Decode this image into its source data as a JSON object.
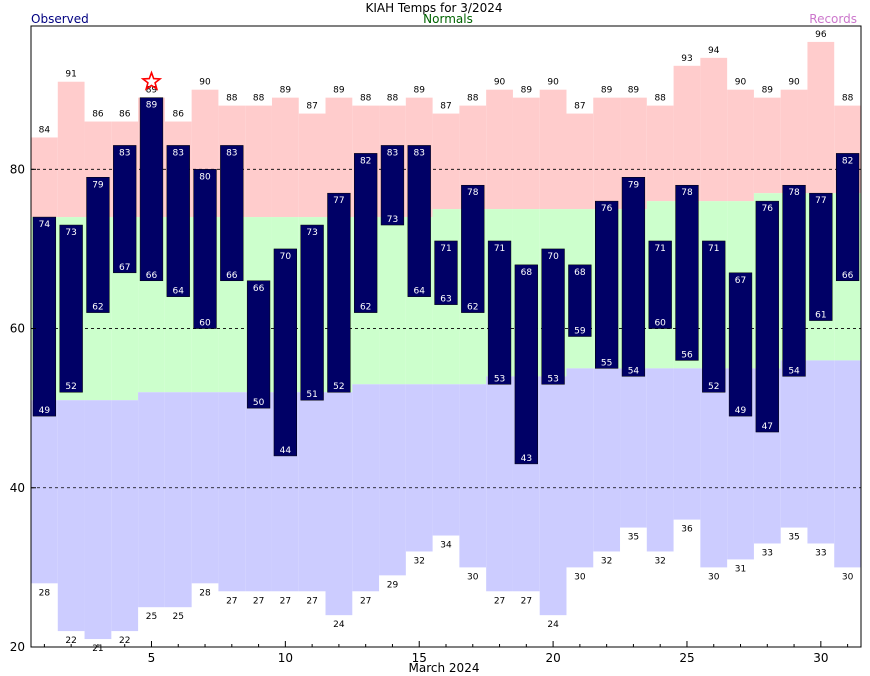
{
  "chart_data": {
    "type": "bar",
    "title": "KIAH Temps for 3/2024",
    "legend": {
      "observed": "Observed",
      "normals": "Normals",
      "records": "Records"
    },
    "xlabel": "March 2024",
    "xlim": [
      0.5,
      31.5
    ],
    "ylim": [
      20,
      98
    ],
    "x_ticks": [
      5,
      10,
      15,
      20,
      25,
      30
    ],
    "y_ticks": [
      20,
      40,
      60,
      80
    ],
    "gridlines_y": [
      40,
      60,
      80
    ],
    "days": [
      1,
      2,
      3,
      4,
      5,
      6,
      7,
      8,
      9,
      10,
      11,
      12,
      13,
      14,
      15,
      16,
      17,
      18,
      19,
      20,
      21,
      22,
      23,
      24,
      25,
      26,
      27,
      28,
      29,
      30,
      31
    ],
    "observed_high": [
      74,
      73,
      79,
      83,
      89,
      83,
      80,
      83,
      66,
      70,
      73,
      77,
      82,
      83,
      83,
      71,
      78,
      71,
      68,
      70,
      68,
      76,
      79,
      71,
      78,
      71,
      67,
      76,
      78,
      77,
      82
    ],
    "observed_low": [
      49,
      52,
      62,
      67,
      66,
      64,
      60,
      66,
      50,
      44,
      51,
      52,
      62,
      73,
      64,
      63,
      62,
      53,
      43,
      53,
      59,
      55,
      54,
      60,
      56,
      52,
      49,
      47,
      54,
      61,
      66
    ],
    "normal_high": [
      74,
      74,
      74,
      74,
      74,
      74,
      74,
      74,
      74,
      74,
      74,
      74,
      74,
      74,
      74,
      75,
      75,
      75,
      75,
      75,
      75,
      75,
      75,
      76,
      76,
      76,
      76,
      77,
      77,
      77,
      77
    ],
    "normal_low": [
      51,
      51,
      51,
      51,
      52,
      52,
      52,
      52,
      52,
      52,
      52,
      52,
      53,
      53,
      53,
      53,
      53,
      54,
      54,
      54,
      55,
      55,
      55,
      55,
      55,
      55,
      55,
      55,
      56,
      56,
      56
    ],
    "record_high": [
      84,
      91,
      86,
      86,
      89,
      86,
      90,
      88,
      88,
      89,
      87,
      89,
      88,
      88,
      89,
      87,
      88,
      90,
      89,
      90,
      87,
      89,
      89,
      88,
      93,
      94,
      90,
      89,
      90,
      96,
      88
    ],
    "record_low": [
      28,
      22,
      21,
      22,
      25,
      25,
      28,
      27,
      27,
      27,
      27,
      24,
      27,
      29,
      32,
      34,
      30,
      27,
      27,
      24,
      30,
      32,
      35,
      32,
      36,
      30,
      31,
      33,
      35,
      33,
      30
    ],
    "record_marker_day": 5,
    "colors": {
      "observed": "#000066",
      "observed_text": "#ffffff",
      "normal_band": "#ccffcc",
      "record_high_band": "#ffcccc",
      "record_low_band": "#ccccff",
      "star": "#ff0000",
      "observed_legend": "#000080",
      "normals_legend": "#006400",
      "records_legend": "#cc77cc"
    }
  }
}
